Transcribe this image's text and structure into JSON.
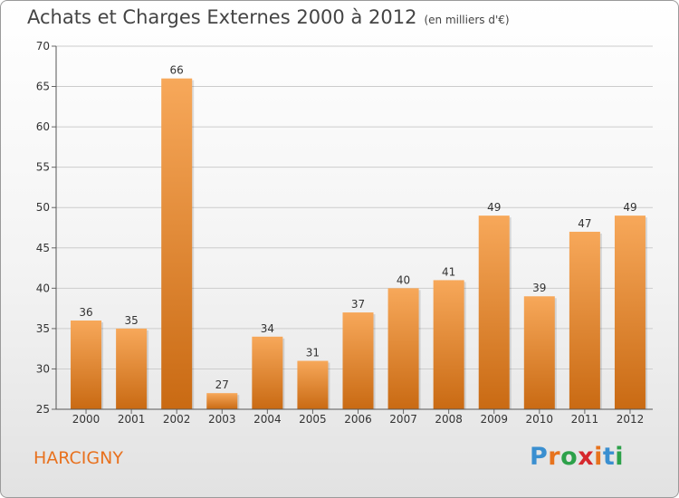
{
  "header": {
    "title": "Achats et Charges Externes 2000 à 2012",
    "unit": "(en milliers d'€)"
  },
  "commune": "HARCIGNY",
  "logo": {
    "text": "Proxiti",
    "letter_colors": [
      "#3a8fd0",
      "#e7731d",
      "#2da14a",
      "#d6282d",
      "#e7731d",
      "#3a8fd0",
      "#2da14a"
    ]
  },
  "colors": {
    "bar_top": "#f7a85a",
    "bar_bottom": "#c96a13",
    "grid": "#cccccc",
    "text": "#333333",
    "accent": "#e8711e"
  },
  "chart_data": {
    "type": "bar",
    "title": "Achats et Charges Externes 2000 à 2012",
    "subtitle": "(en milliers d'€)",
    "categories": [
      "2000",
      "2001",
      "2002",
      "2003",
      "2004",
      "2005",
      "2006",
      "2007",
      "2008",
      "2009",
      "2010",
      "2011",
      "2012"
    ],
    "values": [
      36,
      35,
      66,
      27,
      34,
      31,
      37,
      40,
      41,
      49,
      39,
      47,
      49
    ],
    "ylim": [
      25,
      70
    ],
    "yticks": [
      25,
      30,
      35,
      40,
      45,
      50,
      55,
      60,
      65,
      70
    ],
    "grid": true,
    "data_labels": true
  }
}
